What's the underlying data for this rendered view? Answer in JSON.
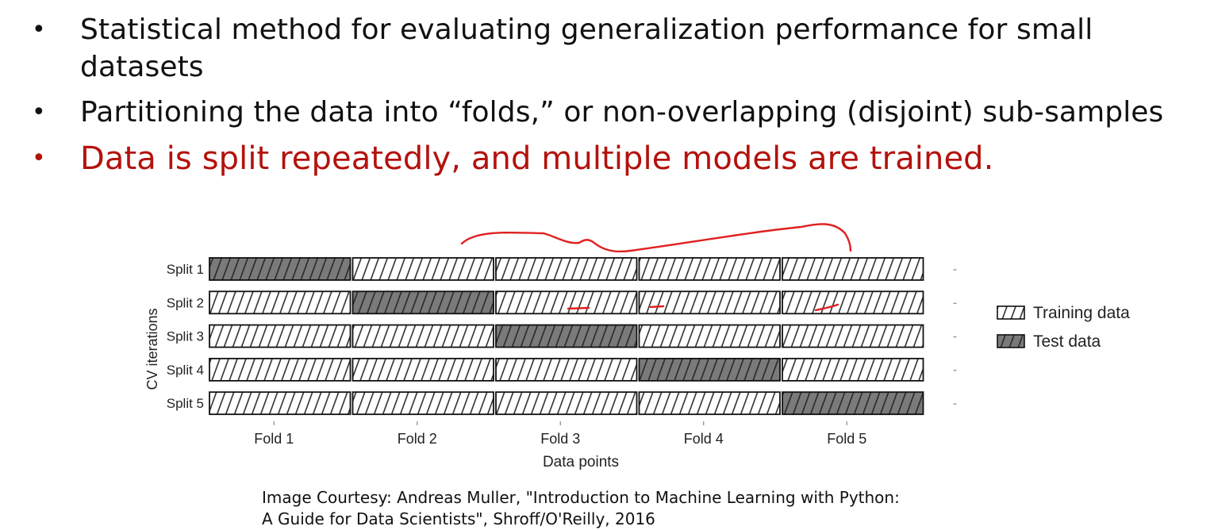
{
  "bullets": [
    {
      "text": "Statistical method for evaluating generalization performance for small datasets",
      "color": "#111111"
    },
    {
      "text": "Partitioning the data into “folds,” or non-overlapping (disjoint) sub-samples",
      "color": "#111111"
    },
    {
      "text": "Data is split repeatedly, and multiple models are trained.",
      "color": "#b3120d"
    }
  ],
  "bullet_symbol": "•",
  "chart_data": {
    "type": "table",
    "rows": [
      "Split 1",
      "Split 2",
      "Split 3",
      "Split 4",
      "Split 5"
    ],
    "columns": [
      "Fold 1",
      "Fold 2",
      "Fold 3",
      "Fold 4",
      "Fold 5"
    ],
    "test_fold_per_row": [
      0,
      1,
      2,
      3,
      4
    ],
    "xlabel": "Data points",
    "ylabel": "CV iterations",
    "legend": {
      "placement": "right",
      "entries": [
        {
          "label": "Training data",
          "style": "hatched",
          "color": "#ffffff"
        },
        {
          "label": "Test data",
          "style": "hatched-filled",
          "color": "#7a7a7a"
        }
      ]
    },
    "annotation_color": "#e02020"
  },
  "caption": {
    "line1": "Image Courtesy: Andreas Muller, \"Introduction to Machine Learning with Python:",
    "line2": "A Guide for Data Scientists\", Shroff/O'Reilly, 2016"
  }
}
